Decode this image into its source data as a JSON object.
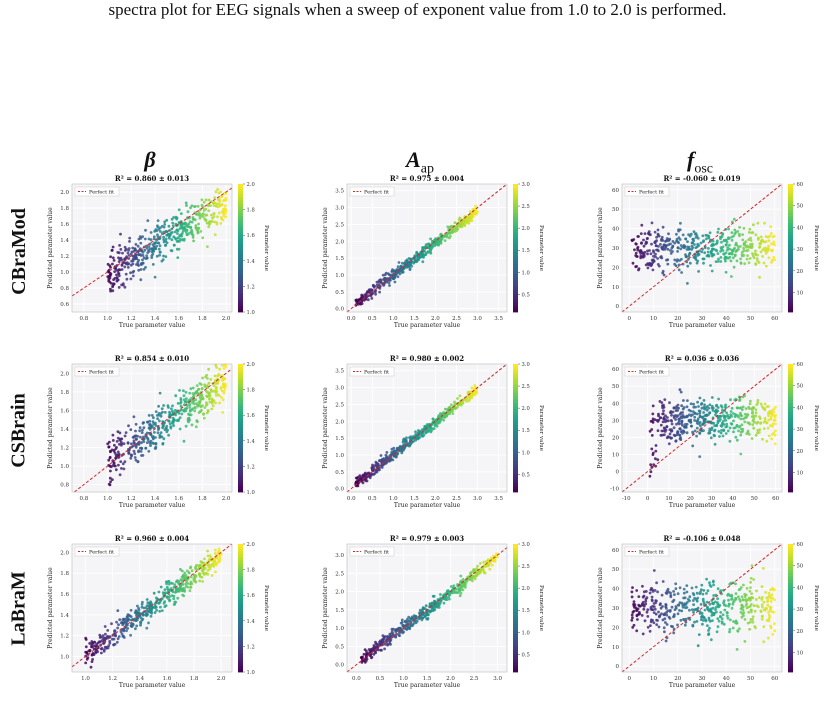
{
  "caption": "spectra plot for EEG signals when a sweep of exponent value from 1.0 to 2.0 is performed.",
  "column_headers": [
    {
      "main": "β",
      "sub": ""
    },
    {
      "main": "A",
      "sub": "ap"
    },
    {
      "main": "f",
      "sub": "osc"
    }
  ],
  "row_labels": [
    "CBraMod",
    "CSBrain",
    "LaBraM"
  ],
  "chart_data": [
    {
      "type": "scatter",
      "title": "R² = 0.860 ± 0.013",
      "xlabel": "True parameter value",
      "ylabel": "Predicted parameter value",
      "colorbar_label": "Parameter value",
      "legend": "Perfect fit",
      "legend_position": "top-left",
      "grid": true,
      "xlim": [
        0.7,
        2.05
      ],
      "ylim": [
        0.5,
        2.1
      ],
      "xticks": [
        0.8,
        1.0,
        1.2,
        1.4,
        1.6,
        1.8,
        2.0
      ],
      "yticks": [
        0.6,
        0.8,
        1.0,
        1.2,
        1.4,
        1.6,
        1.8,
        2.0
      ],
      "cbar_range": [
        1.0,
        2.0
      ],
      "cbar_ticks": [
        1.0,
        1.2,
        1.4,
        1.6,
        1.8,
        2.0
      ],
      "true_range": [
        1.0,
        2.0
      ],
      "noise": 0.12,
      "slope": 0.9,
      "offset": 0.08
    },
    {
      "type": "scatter",
      "title": "R² = 0.975 ± 0.004",
      "xlabel": "True parameter value",
      "ylabel": "Predicted parameter value",
      "colorbar_label": "Parameter value",
      "legend": "Perfect fit",
      "legend_position": "top-left",
      "grid": true,
      "xlim": [
        -0.1,
        3.7
      ],
      "ylim": [
        -0.1,
        3.7
      ],
      "xticks": [
        0.0,
        0.5,
        1.0,
        1.5,
        2.0,
        2.5,
        3.0,
        3.5
      ],
      "yticks": [
        0.0,
        0.5,
        1.0,
        1.5,
        2.0,
        2.5,
        3.0,
        3.5
      ],
      "cbar_range": [
        0.1,
        3.0
      ],
      "cbar_ticks": [
        0.5,
        1.0,
        1.5,
        2.0,
        2.5,
        3.0
      ],
      "true_range": [
        0.1,
        3.0
      ],
      "noise": 0.09,
      "slope": 0.95,
      "offset": 0.05
    },
    {
      "type": "scatter",
      "title": "R² = -0.060 ± 0.019",
      "xlabel": "True parameter value",
      "ylabel": "Predicted parameter value",
      "colorbar_label": "Parameter value",
      "legend": "Perfect fit",
      "legend_position": "top-left",
      "grid": true,
      "xlim": [
        -3,
        63
      ],
      "ylim": [
        -3,
        63
      ],
      "xticks": [
        0,
        10,
        20,
        30,
        40,
        50,
        60
      ],
      "yticks": [
        0,
        10,
        20,
        30,
        40,
        50,
        60
      ],
      "cbar_range": [
        1,
        60
      ],
      "cbar_ticks": [
        10,
        20,
        30,
        40,
        50,
        60
      ],
      "true_range": [
        1,
        60
      ],
      "noise": 5.5,
      "slope": 0.02,
      "offset": 29.5
    },
    {
      "type": "scatter",
      "title": "R² = 0.854 ± 0.010",
      "xlabel": "True parameter value",
      "ylabel": "Predicted parameter value",
      "colorbar_label": "Parameter value",
      "legend": "Perfect fit",
      "legend_position": "top-left",
      "grid": true,
      "xlim": [
        0.7,
        2.05
      ],
      "ylim": [
        0.72,
        2.1
      ],
      "xticks": [
        0.8,
        1.0,
        1.2,
        1.4,
        1.6,
        1.8,
        2.0
      ],
      "yticks": [
        0.8,
        1.0,
        1.2,
        1.4,
        1.6,
        1.8,
        2.0
      ],
      "cbar_range": [
        1.0,
        2.0
      ],
      "cbar_ticks": [
        1.0,
        1.2,
        1.4,
        1.6,
        1.8,
        2.0
      ],
      "true_range": [
        1.0,
        2.0
      ],
      "noise": 0.11,
      "slope": 0.85,
      "offset": 0.2
    },
    {
      "type": "scatter",
      "title": "R² = 0.980 ± 0.002",
      "xlabel": "True parameter value",
      "ylabel": "Predicted parameter value",
      "colorbar_label": "Parameter value",
      "legend": "Perfect fit",
      "legend_position": "top-left",
      "grid": true,
      "xlim": [
        -0.1,
        3.7
      ],
      "ylim": [
        -0.1,
        3.7
      ],
      "xticks": [
        0.0,
        0.5,
        1.0,
        1.5,
        2.0,
        2.5,
        3.0,
        3.5
      ],
      "yticks": [
        0.0,
        0.5,
        1.0,
        1.5,
        2.0,
        2.5,
        3.0,
        3.5
      ],
      "cbar_range": [
        0.1,
        3.0
      ],
      "cbar_ticks": [
        0.5,
        1.0,
        1.5,
        2.0,
        2.5,
        3.0
      ],
      "true_range": [
        0.1,
        3.0
      ],
      "noise": 0.08,
      "slope": 0.97,
      "offset": 0.04
    },
    {
      "type": "scatter",
      "title": "R² = 0.036 ± 0.036",
      "xlabel": "True parameter value",
      "ylabel": "Predicted parameter value",
      "colorbar_label": "Parameter value",
      "legend": "Perfect fit",
      "legend_position": "top-left",
      "grid": true,
      "xlim": [
        -12,
        63
      ],
      "ylim": [
        -12,
        63
      ],
      "xticks": [
        -10,
        0,
        10,
        20,
        30,
        40,
        50,
        60
      ],
      "yticks": [
        -10,
        0,
        10,
        20,
        30,
        40,
        50,
        60
      ],
      "cbar_range": [
        1,
        60
      ],
      "cbar_ticks": [
        10,
        20,
        30,
        40,
        50,
        60
      ],
      "true_range": [
        1,
        60
      ],
      "noise": 6,
      "slope": 0.06,
      "offset": 29,
      "lowtail": true
    },
    {
      "type": "scatter",
      "title": "R² = 0.960 ± 0.004",
      "xlabel": "True parameter value",
      "ylabel": "Predicted parameter value",
      "colorbar_label": "Parameter value",
      "legend": "Perfect fit",
      "legend_position": "top-left",
      "grid": true,
      "xlim": [
        0.9,
        2.08
      ],
      "ylim": [
        0.85,
        2.08
      ],
      "xticks": [
        1.0,
        1.2,
        1.4,
        1.6,
        1.8,
        2.0
      ],
      "yticks": [
        1.0,
        1.2,
        1.4,
        1.6,
        1.8,
        2.0
      ],
      "cbar_range": [
        1.0,
        2.0
      ],
      "cbar_ticks": [
        1.0,
        1.2,
        1.4,
        1.6,
        1.8,
        2.0
      ],
      "true_range": [
        1.0,
        2.0
      ],
      "noise": 0.055,
      "slope": 0.96,
      "offset": 0.05
    },
    {
      "type": "scatter",
      "title": "R² = 0.979 ± 0.003",
      "xlabel": "True parameter value",
      "ylabel": "Predicted parameter value",
      "colorbar_label": "Parameter value",
      "legend": "Perfect fit",
      "legend_position": "top-left",
      "grid": true,
      "xlim": [
        -0.2,
        3.2
      ],
      "ylim": [
        -0.2,
        3.3
      ],
      "xticks": [
        0.0,
        0.5,
        1.0,
        1.5,
        2.0,
        2.5,
        3.0
      ],
      "yticks": [
        0.0,
        0.5,
        1.0,
        1.5,
        2.0,
        2.5,
        3.0
      ],
      "cbar_range": [
        0.1,
        3.0
      ],
      "cbar_ticks": [
        0.5,
        1.0,
        1.5,
        2.0,
        2.5,
        3.0
      ],
      "true_range": [
        0.1,
        3.0
      ],
      "noise": 0.085,
      "slope": 0.96,
      "offset": 0.05
    },
    {
      "type": "scatter",
      "title": "R² = -0.106 ± 0.048",
      "xlabel": "True parameter value",
      "ylabel": "Predicted parameter value",
      "colorbar_label": "Parameter value",
      "legend": "Perfect fit",
      "legend_position": "top-left",
      "grid": true,
      "xlim": [
        -3,
        63
      ],
      "ylim": [
        -3,
        63
      ],
      "xticks": [
        0,
        10,
        20,
        30,
        40,
        50,
        60
      ],
      "yticks": [
        0,
        10,
        20,
        30,
        40,
        50,
        60
      ],
      "cbar_range": [
        1,
        60
      ],
      "cbar_ticks": [
        10,
        20,
        30,
        40,
        50,
        60
      ],
      "true_range": [
        1,
        60
      ],
      "noise": 7,
      "slope": 0.02,
      "offset": 29.5
    }
  ]
}
